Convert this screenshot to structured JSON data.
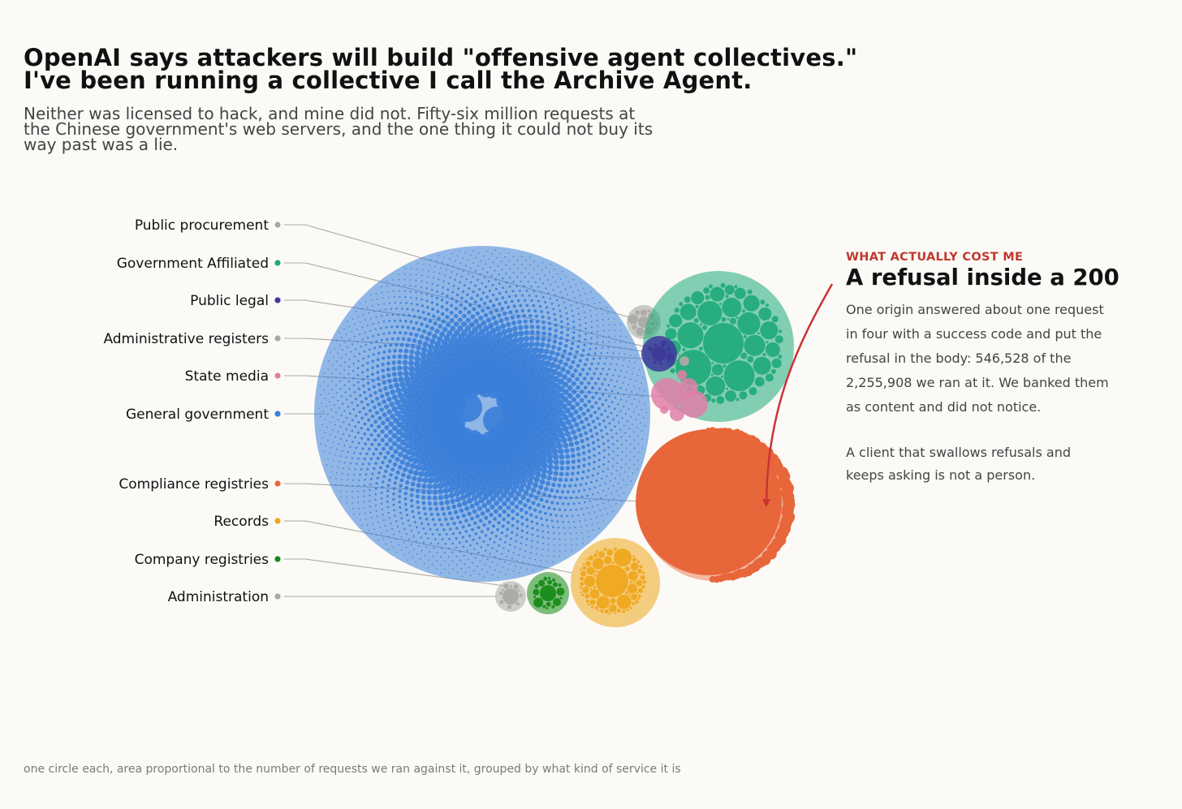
{
  "header": {
    "title_line1": "OpenAI says attackers will build \"offensive agent collectives.\"",
    "title_line2": "I've been running a collective I call the Archive Agent.",
    "subtitle_line1": "Neither was licensed to hack, and mine did not. Fifty-six million requests at",
    "subtitle_line2": "the Chinese government's web servers, and the one thing it could not buy its",
    "subtitle_line3": "way past was a lie."
  },
  "annotation": {
    "kicker": "WHAT ACTUALLY COST ME",
    "headline": "A refusal inside a 200",
    "body_lines": [
      "One origin answered about one request",
      "in four with a success code and put the",
      "refusal in the body: 546,528 of the",
      "2,255,908 we ran at it. We banked them",
      "as content and did not notice."
    ],
    "body2_lines": [
      "A client that swallows refusals and",
      "keeps asking is not a person."
    ],
    "accent_color": "#c0392b"
  },
  "footnote": "one circle each, area proportional to the number of requests we ran against it, grouped by what kind of service it is",
  "chart_data": {
    "type": "packed-bubble",
    "title": "",
    "groups": [
      {
        "name": "Public procurement",
        "color": "#a8a8a4"
      },
      {
        "name": "Government Affiliated",
        "color": "#1faa7a"
      },
      {
        "name": "Public legal",
        "color": "#3d3a9a"
      },
      {
        "name": "Administrative registers",
        "color": "#a8a8a4"
      },
      {
        "name": "State media",
        "color": "#e07fa8"
      },
      {
        "name": "General government",
        "color": "#3b7fd9"
      },
      {
        "name": "Compliance registries",
        "color": "#e8673a"
      },
      {
        "name": "Records",
        "color": "#eea61a"
      },
      {
        "name": "Company registries",
        "color": "#158a15"
      },
      {
        "name": "Administration",
        "color": "#a8a8a4"
      }
    ],
    "highlight": {
      "group": "Compliance registries",
      "refusals": 546528,
      "requests": 2255908
    }
  }
}
